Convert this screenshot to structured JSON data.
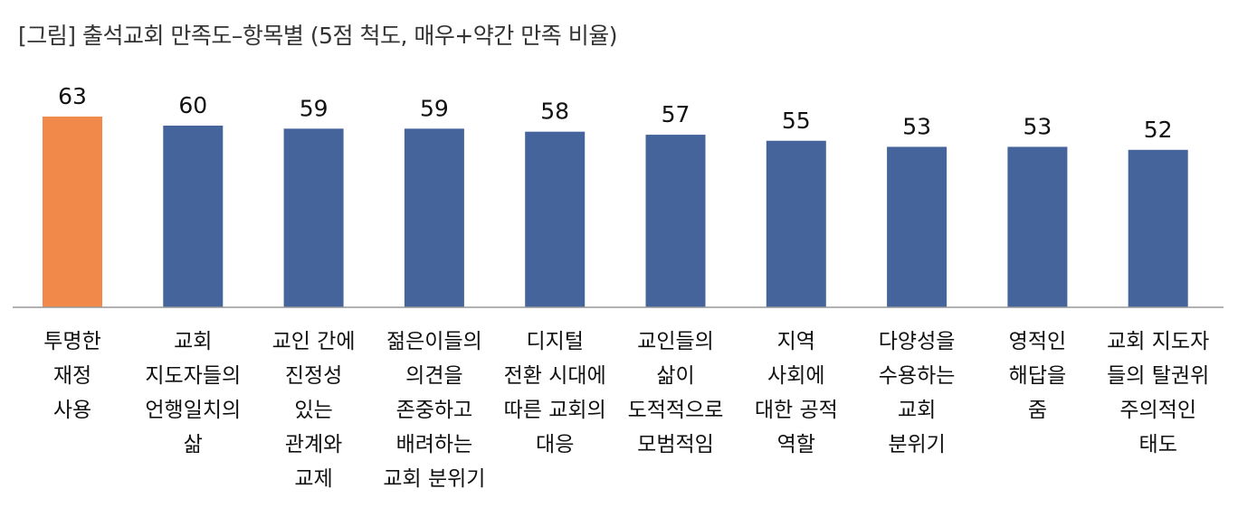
{
  "title": "[그림] 출석교회 만족도–항목별 (5점 척도, 매우+약간 만족 비율)",
  "colors": {
    "highlight": "#f0894a",
    "bar": "#44649b",
    "axis": "#999999"
  },
  "chart_data": {
    "type": "bar",
    "title": "[그림] 출석교회 만족도–항목별 (5점 척도, 매우+약간 만족 비율)",
    "categories": [
      [
        "투명한",
        "재정",
        "사용"
      ],
      [
        "교회",
        "지도자들의",
        "언행일치의",
        "삶"
      ],
      [
        "교인 간에",
        "진정성",
        "있는",
        "관계와",
        "교제"
      ],
      [
        "젊은이들의",
        "의견을",
        "존중하고",
        "배려하는",
        "교회 분위기"
      ],
      [
        "디지털",
        "전환 시대에",
        "따른 교회의",
        "대응"
      ],
      [
        "교인들의",
        "삶이",
        "도적적으로",
        "모범적임"
      ],
      [
        "지역",
        "사회에",
        "대한 공적",
        "역할"
      ],
      [
        "다양성을",
        "수용하는",
        "교회",
        "분위기"
      ],
      [
        "영적인",
        "해답을",
        "줌"
      ],
      [
        "교회 지도자",
        "들의 탈권위",
        "주의적인",
        "태도"
      ]
    ],
    "values": [
      63,
      60,
      59,
      59,
      58,
      57,
      55,
      53,
      53,
      52
    ],
    "highlight_index": 0,
    "ylim": [
      0,
      70
    ],
    "grid": false,
    "legend": "none"
  }
}
